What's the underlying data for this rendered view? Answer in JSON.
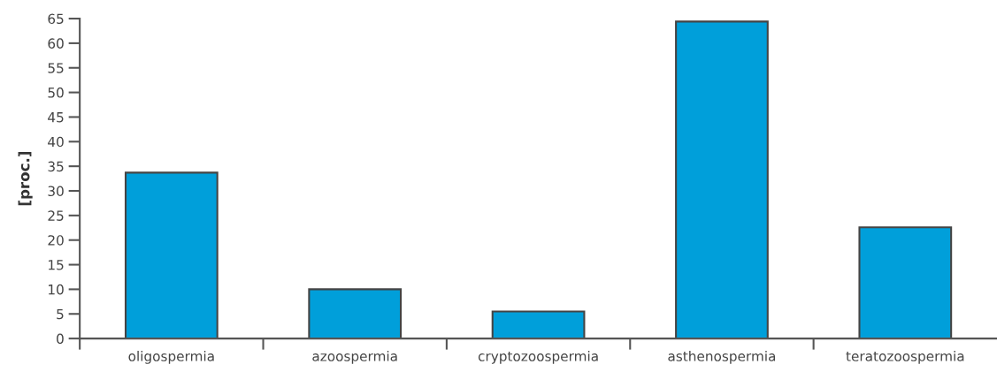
{
  "chart_data": {
    "type": "bar",
    "ylabel": "[proc.]",
    "categories": [
      "oligospermia",
      "azoospermia",
      "cryptozoospermia",
      "asthenospermia",
      "teratozoospermia"
    ],
    "values": [
      33.7,
      10,
      5.5,
      64.4,
      22.6
    ],
    "color": "#009fda",
    "ylim": [
      0,
      65
    ],
    "yticks": [
      0,
      5,
      10,
      15,
      20,
      25,
      30,
      35,
      40,
      45,
      50,
      55,
      60,
      65
    ],
    "grid": false
  }
}
